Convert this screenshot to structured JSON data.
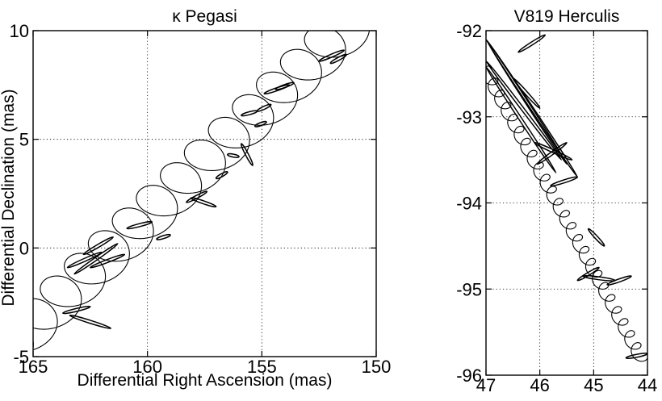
{
  "chart_data": [
    {
      "type": "line",
      "title": "κ Pegasi",
      "xlabel": "Differential Right Ascension (mas)",
      "ylabel": "Differential Declination (mas)",
      "xlim": [
        165,
        150
      ],
      "ylim": [
        -5,
        10
      ],
      "x_ticks": [
        "165",
        "160",
        "155",
        "150"
      ],
      "y_ticks": [
        "-5",
        "0",
        "5",
        "10"
      ],
      "grid": true,
      "series": [
        {
          "kind": "orbit",
          "start": [
            165.0,
            -4.6
          ],
          "end": [
            150.3,
            10.0
          ],
          "cycles": 14,
          "radius_x": 1.15,
          "radius_y": 0.95
        },
        {
          "kind": "measurement_error_ellipses",
          "segments": [
            [
              [
                163.7,
                -3.0
              ],
              [
                162.5,
                -2.7
              ]
            ],
            [
              [
                163.4,
                -3.1
              ],
              [
                161.6,
                -3.7
              ]
            ],
            [
              [
                163.5,
                -0.9
              ],
              [
                162.0,
                -0.2
              ]
            ],
            [
              [
                163.2,
                -1.2
              ],
              [
                161.3,
                0.2
              ]
            ],
            [
              [
                162.8,
                -0.3
              ],
              [
                161.5,
                0.5
              ]
            ],
            [
              [
                162.5,
                -0.9
              ],
              [
                161.0,
                -0.3
              ]
            ],
            [
              [
                160.9,
                0.9
              ],
              [
                159.8,
                1.2
              ]
            ],
            [
              [
                159.6,
                0.4
              ],
              [
                159.0,
                0.6
              ]
            ],
            [
              [
                158.1,
                2.3
              ],
              [
                157.0,
                1.9
              ]
            ],
            [
              [
                158.3,
                2.1
              ],
              [
                157.4,
                2.6
              ]
            ],
            [
              [
                157.0,
                3.2
              ],
              [
                156.5,
                3.5
              ]
            ],
            [
              [
                156.5,
                4.3
              ],
              [
                156.0,
                4.2
              ]
            ],
            [
              [
                155.9,
                4.8
              ],
              [
                155.4,
                3.8
              ]
            ],
            [
              [
                155.3,
                5.6
              ],
              [
                154.8,
                5.8
              ]
            ],
            [
              [
                155.9,
                6.1
              ],
              [
                155.2,
                6.3
              ]
            ],
            [
              [
                155.2,
                6.3
              ],
              [
                154.6,
                6.6
              ]
            ],
            [
              [
                154.9,
                7.1
              ],
              [
                153.8,
                7.5
              ]
            ],
            [
              [
                154.4,
                7.3
              ],
              [
                153.6,
                7.6
              ]
            ],
            [
              [
                152.5,
                8.6
              ],
              [
                151.4,
                9.1
              ]
            ],
            [
              [
                152.0,
                8.5
              ],
              [
                151.3,
                8.9
              ]
            ]
          ]
        }
      ]
    },
    {
      "type": "line",
      "title": "V819 Herculis",
      "xlabel": "",
      "ylabel": "",
      "xlim": [
        47,
        44
      ],
      "ylim": [
        -96,
        -92
      ],
      "x_ticks": [
        "47",
        "46",
        "45",
        "44"
      ],
      "y_ticks": [
        "-92",
        "-93",
        "-94",
        "-95",
        "-96"
      ],
      "grid": true,
      "series": [
        {
          "kind": "orbit",
          "start": [
            46.9,
            -92.45
          ],
          "end": [
            44.0,
            -95.8
          ],
          "cycles": 24,
          "radius_x": 0.12,
          "radius_y": 0.07
        },
        {
          "kind": "measurement_error_ellipses",
          "segments": [
            [
              [
                47.0,
                -92.1
              ],
              [
                45.3,
                -93.7
              ]
            ],
            [
              [
                46.95,
                -92.15
              ],
              [
                45.5,
                -93.55
              ]
            ],
            [
              [
                47.0,
                -92.35
              ],
              [
                45.6,
                -93.5
              ]
            ],
            [
              [
                47.0,
                -92.42
              ],
              [
                45.7,
                -93.65
              ]
            ],
            [
              [
                46.4,
                -92.25
              ],
              [
                45.9,
                -92.05
              ]
            ],
            [
              [
                46.5,
                -92.55
              ],
              [
                46.0,
                -92.9
              ]
            ],
            [
              [
                46.1,
                -93.3
              ],
              [
                45.4,
                -93.5
              ]
            ],
            [
              [
                46.05,
                -93.55
              ],
              [
                45.5,
                -93.3
              ]
            ],
            [
              [
                45.8,
                -93.8
              ],
              [
                45.3,
                -93.7
              ]
            ],
            [
              [
                45.1,
                -94.3
              ],
              [
                44.8,
                -94.5
              ]
            ],
            [
              [
                45.3,
                -94.9
              ],
              [
                44.9,
                -94.75
              ]
            ],
            [
              [
                45.2,
                -94.85
              ],
              [
                44.6,
                -94.9
              ]
            ],
            [
              [
                44.75,
                -94.95
              ],
              [
                44.3,
                -94.85
              ]
            ],
            [
              [
                44.4,
                -95.8
              ],
              [
                44.0,
                -95.75
              ]
            ]
          ]
        }
      ]
    }
  ]
}
